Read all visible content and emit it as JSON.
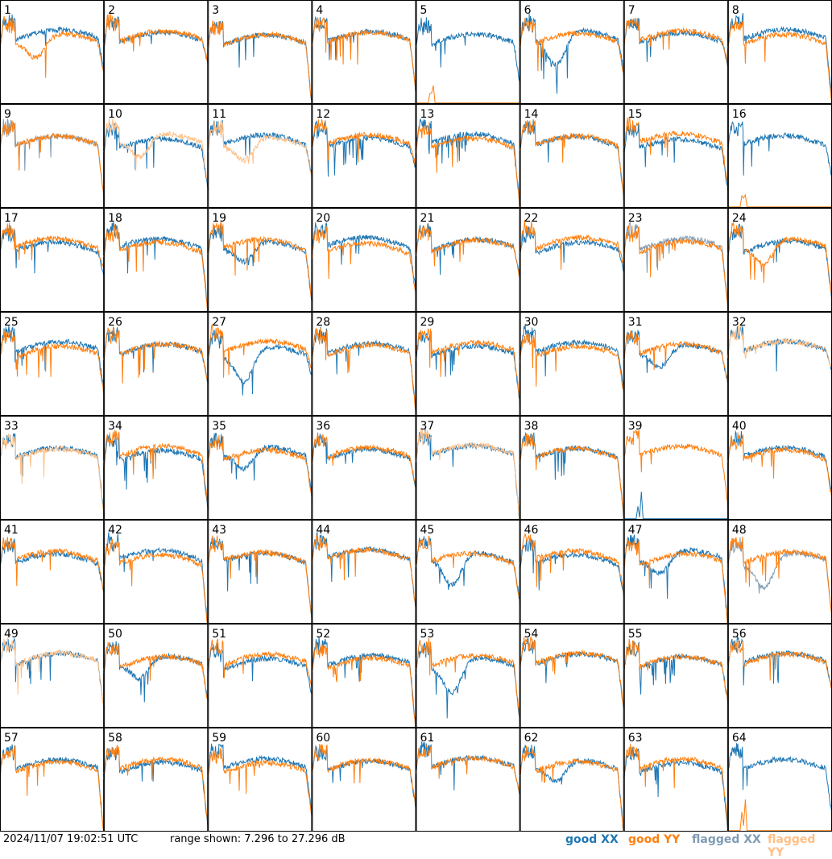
{
  "chart_data": {
    "type": "line",
    "panels_count": 64,
    "grid": {
      "cols": 8,
      "rows": 8
    },
    "panel_labels": [
      "1",
      "2",
      "3",
      "4",
      "5",
      "6",
      "7",
      "8",
      "9",
      "10",
      "11",
      "12",
      "13",
      "14",
      "15",
      "16",
      "17",
      "18",
      "19",
      "20",
      "21",
      "22",
      "23",
      "24",
      "25",
      "26",
      "27",
      "28",
      "29",
      "30",
      "31",
      "32",
      "33",
      "34",
      "35",
      "36",
      "37",
      "38",
      "39",
      "40",
      "41",
      "42",
      "43",
      "44",
      "45",
      "46",
      "47",
      "48",
      "49",
      "50",
      "51",
      "52",
      "53",
      "54",
      "55",
      "56",
      "57",
      "58",
      "59",
      "60",
      "61",
      "62",
      "63",
      "64"
    ],
    "ylim": [
      7.296,
      27.296
    ],
    "yunit": "dB",
    "series_colors": {
      "good_xx": "#1f77b4",
      "good_yy": "#ff7f0e",
      "flagged_xx": "#7f9bb4",
      "flagged_yy": "#ffbf86"
    },
    "panel_status": {
      "flagged_yy": [
        10,
        11,
        32,
        33,
        37,
        49
      ],
      "flagged_xx": [
        9,
        23,
        48
      ],
      "yy_dead": [
        5,
        16,
        64
      ],
      "xx_dead": [
        39
      ]
    }
  },
  "footer": {
    "timestamp": "2024/11/07 19:02:51 UTC",
    "range_text": "range shown: 7.296 to 27.296 dB",
    "legend": [
      {
        "label": "good XX",
        "color": "#1f77b4"
      },
      {
        "label": "good YY",
        "color": "#ff7f0e"
      },
      {
        "label": "flagged XX",
        "color": "#7f9bb4"
      },
      {
        "label": "flagged YY",
        "color": "#ffbf86"
      }
    ]
  }
}
